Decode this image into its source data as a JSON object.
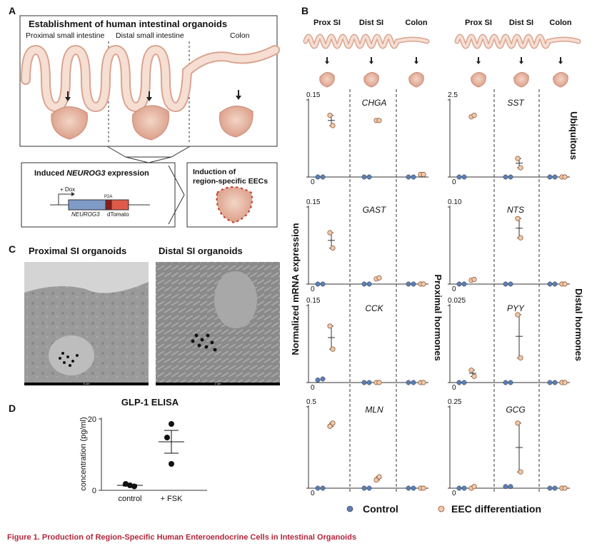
{
  "panel_a": {
    "letter": "A",
    "title": "Establishment of human intestinal organoids",
    "regions": [
      "Proximal small intestine",
      "Distal small intestine",
      "Colon"
    ],
    "induced_prefix": "Induced ",
    "induced_gene": "NEUROG3",
    "induced_suffix": " expression",
    "dox": "+ Dox",
    "p2a": "P2A",
    "gene": "NEUROG3",
    "reporter": "dTomato",
    "induction": [
      "Induction of",
      "region-specific EECs"
    ]
  },
  "panel_b": {
    "letter": "B",
    "columns": [
      "Prox SI",
      "Dist SI",
      "Colon"
    ],
    "ylabel": "Normalized mRNA expression",
    "groups": [
      "Ubiquitous",
      "Proximal hormones",
      "Distal hormones"
    ],
    "legend": [
      "Control",
      "EEC differentiation"
    ],
    "plots": [
      {
        "gene": "CHGA",
        "ylim": [
          0,
          0.15
        ],
        "yticks": [
          0,
          0.15
        ],
        "control": [
          [
            0,
            0
          ],
          [
            0,
            0
          ],
          [
            0,
            0
          ]
        ],
        "eec": [
          [
            0.12,
            0.1
          ],
          [
            0.11,
            0.11
          ],
          [
            0.005,
            0.005
          ]
        ]
      },
      {
        "gene": "SST",
        "ylim": [
          0,
          2.5
        ],
        "yticks": [
          0,
          2.5
        ],
        "control": [
          [
            0,
            0
          ],
          [
            0,
            0
          ],
          [
            0,
            0
          ]
        ],
        "eec": [
          [
            1.95,
            2.0
          ],
          [
            0.6,
            0.3
          ],
          [
            0,
            0
          ]
        ]
      },
      {
        "gene": "GAST",
        "ylim": [
          0,
          0.15
        ],
        "yticks": [
          0,
          0.15
        ],
        "control": [
          [
            0,
            0
          ],
          [
            0,
            0
          ],
          [
            0,
            0
          ]
        ],
        "eec": [
          [
            0.1,
            0.07
          ],
          [
            0.01,
            0.012
          ],
          [
            0,
            0
          ]
        ]
      },
      {
        "gene": "NTS",
        "ylim": [
          0,
          0.1
        ],
        "yticks": [
          0,
          {
            "value": 0.1,
            "label": "0.10"
          }
        ],
        "control": [
          [
            0,
            0
          ],
          [
            0,
            0
          ],
          [
            0,
            0
          ]
        ],
        "eec": [
          [
            0.005,
            0.006
          ],
          [
            0.085,
            0.06
          ],
          [
            0,
            0
          ]
        ]
      },
      {
        "gene": "CCK",
        "ylim": [
          0,
          0.15
        ],
        "yticks": [
          0,
          0.15
        ],
        "control": [
          [
            0.005,
            0.007
          ],
          [
            0,
            0
          ],
          [
            0,
            0
          ]
        ],
        "eec": [
          [
            0.11,
            0.065
          ],
          [
            0,
            0
          ],
          [
            0,
            0
          ]
        ]
      },
      {
        "gene": "PYY",
        "ylim": [
          0,
          0.025
        ],
        "yticks": [
          0,
          0.025
        ],
        "control": [
          [
            0,
            0
          ],
          [
            0,
            0
          ],
          [
            0,
            0
          ]
        ],
        "eec": [
          [
            0.004,
            0.002
          ],
          [
            0.022,
            0.008
          ],
          [
            0,
            0
          ]
        ]
      },
      {
        "gene": "MLN",
        "ylim": [
          0,
          0.5
        ],
        "yticks": [
          0,
          0.5
        ],
        "control": [
          [
            0,
            0
          ],
          [
            0,
            0
          ],
          [
            0,
            0
          ]
        ],
        "eec": [
          [
            0.38,
            0.4
          ],
          [
            0.05,
            0.07
          ],
          [
            0,
            0
          ]
        ]
      },
      {
        "gene": "GCG",
        "ylim": [
          0,
          0.25
        ],
        "yticks": [
          0,
          0.25
        ],
        "control": [
          [
            0,
            0
          ],
          [
            0.005,
            0.005
          ],
          [
            0,
            0
          ]
        ],
        "eec": [
          [
            0,
            0.005
          ],
          [
            0.2,
            0.05
          ],
          [
            0,
            0
          ]
        ]
      }
    ]
  },
  "panel_c": {
    "letter": "C",
    "labels": [
      "Proximal SI organoids",
      "Distal SI organoids"
    ],
    "scales": [
      "5 um",
      "2 um"
    ]
  },
  "panel_d": {
    "letter": "D",
    "chart_data": {
      "type": "scatter",
      "title": "GLP-1 ELISA",
      "ylabel": "concentration (pg/ml)",
      "categories": [
        "control",
        "+ FSK"
      ],
      "values": [
        [
          1.8,
          1.4,
          1.1
        ],
        [
          18.6,
          14.8,
          7.4
        ]
      ],
      "mean": [
        1.4,
        13.6
      ],
      "sem": [
        0.2,
        3.2
      ],
      "ylim": [
        0,
        20
      ],
      "yticks": [
        0,
        20
      ]
    }
  },
  "caption": "Figure 1. Production of Region-Specific Human Enteroendocrine Cells in Intestinal Organoids"
}
